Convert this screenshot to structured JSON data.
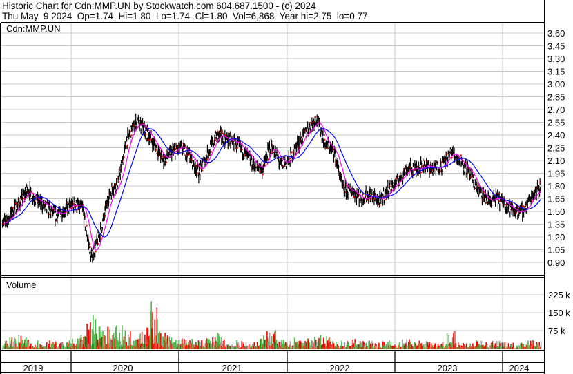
{
  "header": {
    "title": "Historic Chart for Cdn:MMP.UN by Stockwatch.com 604.687.1500 - (c) 2024",
    "quote": "Thu May  9 2024  Op=1.74  Hi=1.80  Lo=1.74  Cl=1.80  Vol=6,868  Year hi=2.75  lo=0.77"
  },
  "chart_data": [
    {
      "type": "line",
      "title": "Cdn:MMP.UN",
      "description_of_marks": "daily high-low bars with 2 moving averages",
      "colors": {
        "bars": "#000000",
        "close_marks": "#ff0000",
        "ma_short": "#ff00ff",
        "ma_long": "#0000ff",
        "grid": "#c8c8c8"
      },
      "ylim": [
        0.75,
        3.7
      ],
      "y_ticks": [
        "3.60",
        "3.45",
        "3.30",
        "3.15",
        "3.00",
        "2.85",
        "2.70",
        "2.55",
        "2.40",
        "2.25",
        "2.10",
        "1.95",
        "1.80",
        "1.65",
        "1.50",
        "1.35",
        "1.20",
        "1.05",
        "0.90"
      ],
      "x_ticks": [
        "2019",
        "2020",
        "2021",
        "2022",
        "2023",
        "2024"
      ],
      "grid": true,
      "months": [
        "2019-05",
        "2019-06",
        "2019-07",
        "2019-08",
        "2019-09",
        "2019-10",
        "2019-11",
        "2019-12",
        "2020-01",
        "2020-02",
        "2020-03",
        "2020-04",
        "2020-05",
        "2020-06",
        "2020-07",
        "2020-08",
        "2020-09",
        "2020-10",
        "2020-11",
        "2020-12",
        "2021-01",
        "2021-02",
        "2021-03",
        "2021-04",
        "2021-05",
        "2021-06",
        "2021-07",
        "2021-08",
        "2021-09",
        "2021-10",
        "2021-11",
        "2021-12",
        "2022-01",
        "2022-02",
        "2022-03",
        "2022-04",
        "2022-05",
        "2022-06",
        "2022-07",
        "2022-08",
        "2022-09",
        "2022-10",
        "2022-11",
        "2022-12",
        "2023-01",
        "2023-02",
        "2023-03",
        "2023-04",
        "2023-05",
        "2023-06",
        "2023-07",
        "2023-08",
        "2023-09",
        "2023-10",
        "2023-11",
        "2023-12",
        "2024-01",
        "2024-02",
        "2024-03",
        "2024-04",
        "2024-05"
      ],
      "close": [
        1.33,
        1.45,
        1.6,
        1.76,
        1.62,
        1.55,
        1.45,
        1.52,
        1.58,
        1.55,
        0.95,
        1.25,
        1.7,
        1.85,
        2.35,
        2.55,
        2.45,
        2.3,
        2.1,
        2.2,
        2.25,
        2.15,
        1.95,
        2.2,
        2.4,
        2.35,
        2.3,
        2.2,
        2.05,
        2.0,
        2.3,
        2.05,
        2.1,
        2.3,
        2.45,
        2.6,
        2.3,
        2.2,
        1.75,
        1.75,
        1.65,
        1.7,
        1.62,
        1.75,
        1.85,
        2.0,
        2.0,
        2.05,
        2.0,
        2.05,
        2.2,
        2.1,
        1.95,
        1.75,
        1.62,
        1.65,
        1.6,
        1.5,
        1.5,
        1.7,
        1.8
      ]
    },
    {
      "type": "bar",
      "title": "Volume",
      "colors": {
        "up": "#4cbb4c",
        "down": "#ff0000",
        "unchanged": "#a0a0a0"
      },
      "y_ticks": [
        "225 k",
        "150 k",
        "75 k"
      ],
      "ylim_k": [
        0,
        290
      ],
      "monthly_peak_volume_k": [
        45,
        55,
        60,
        50,
        45,
        40,
        35,
        30,
        45,
        60,
        150,
        120,
        110,
        100,
        90,
        120,
        100,
        210,
        80,
        60,
        50,
        45,
        40,
        60,
        70,
        45,
        40,
        35,
        35,
        60,
        130,
        40,
        35,
        50,
        45,
        60,
        55,
        35,
        40,
        45,
        35,
        40,
        35,
        40,
        35,
        45,
        40,
        40,
        35,
        40,
        80,
        40,
        35,
        40,
        30,
        35,
        35,
        30,
        35,
        45,
        35
      ]
    }
  ]
}
